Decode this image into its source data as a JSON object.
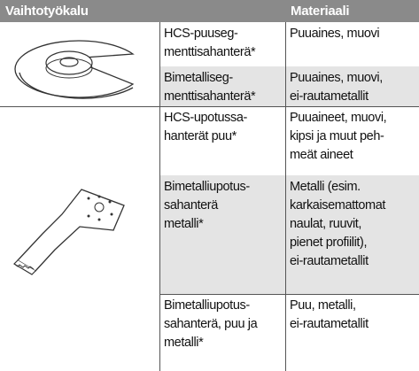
{
  "header": {
    "tool": "Vaihtotyökalu",
    "material": "Materiaali"
  },
  "rows": [
    {
      "tool": [
        "HCS-puuseg-",
        "menttisahanterä*"
      ],
      "material": [
        "Puuaines, muovi"
      ]
    },
    {
      "tool": [
        "Bimetalliseg-",
        "menttisahanterä*"
      ],
      "material": [
        "Puuaines, muovi,",
        "ei-rautametallit"
      ]
    },
    {
      "tool": [
        "HCS-upotussa-",
        "hanterät puu*"
      ],
      "material": [
        "Puuaineet, muovi,",
        "kipsi ja muut peh-",
        "meät aineet"
      ]
    },
    {
      "tool": [
        "Bimetalliupotus-",
        "sahanterä",
        "metalli*"
      ],
      "material": [
        "Metalli (esim.",
        "karkaisemattomat",
        "naulat, ruuvit,",
        "pienet profiilit),",
        "ei-rautametallit"
      ]
    },
    {
      "tool": [
        "Bimetalliupotus-",
        "sahanterä, puu ja",
        "metalli*"
      ],
      "material": [
        "Puu, metalli,",
        "ei-rautametallit"
      ]
    }
  ]
}
